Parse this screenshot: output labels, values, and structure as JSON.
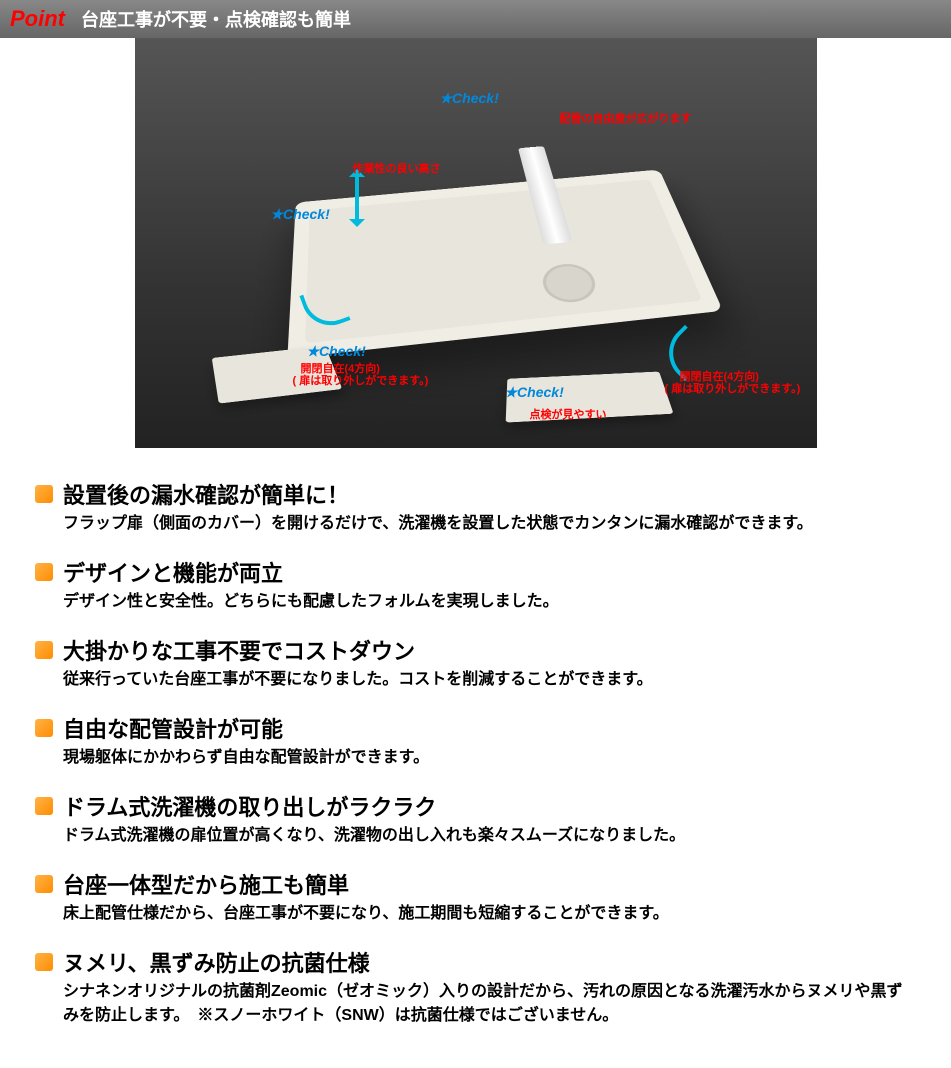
{
  "header": {
    "point_label": "Point",
    "title": "台座工事が不要・点検確認も簡単"
  },
  "diagram": {
    "check_label": "★Check!",
    "checks": [
      {
        "pos": "check-1"
      },
      {
        "pos": "check-2"
      },
      {
        "pos": "check-3"
      },
      {
        "pos": "check-4"
      }
    ],
    "notes": {
      "pipe_freedom": "配管の自由度が広がります",
      "good_height": "作業性の良い高さ",
      "open_close_4way_a": "開閉自在(4方向)",
      "open_close_4way_b": "( 扉は取り外しができます。)",
      "easy_inspection": "点検が見やすい",
      "open_close_right_a": "開閉自在(4方向)",
      "open_close_right_b": "( 扉は取り外しができます。)"
    },
    "colors": {
      "background_gradient_top": "#555555",
      "background_gradient_bottom": "#222222",
      "product_body": "#f0ede5",
      "check_text": "#0088dd",
      "note_text": "#ff0000",
      "arrow_color": "#00bbdd"
    }
  },
  "features": [
    {
      "title": "設置後の漏水確認が簡単に！",
      "desc": "フラップ扉（側面のカバー）を開けるだけで、洗濯機を設置した状態でカンタンに漏水確認ができます。"
    },
    {
      "title": "デザインと機能が両立",
      "desc": "デザイン性と安全性。どちらにも配慮したフォルムを実現しました。"
    },
    {
      "title": "大掛かりな工事不要でコストダウン",
      "desc": "従来行っていた台座工事が不要になりました。コストを削減することができます。"
    },
    {
      "title": "自由な配管設計が可能",
      "desc": "現場躯体にかかわらず自由な配管設計ができます。"
    },
    {
      "title": "ドラム式洗濯機の取り出しがラクラク",
      "desc": "ドラム式洗濯機の扉位置が高くなり、洗濯物の出し入れも楽々スムーズになりました。"
    },
    {
      "title": "台座一体型だから施工も簡単",
      "desc": "床上配管仕様だから、台座工事が不要になり、施工期間も短縮することができます。"
    },
    {
      "title": "ヌメリ、黒ずみ防止の抗菌仕様",
      "desc": "シナネンオリジナルの抗菌剤Zeomic（ゼオミック）入りの設計だから、汚れの原因となる洗濯汚水からヌメリや黒ずみを防止します。　※スノーホワイト（SNW）は抗菌仕様ではございません。"
    }
  ],
  "styling": {
    "header_bg_gradient": [
      "#888888",
      "#666666"
    ],
    "point_color": "#ff0000",
    "header_title_color": "#ffffff",
    "bullet_gradient": [
      "#ffb347",
      "#ff8c00"
    ],
    "feature_title_fontsize": 22,
    "feature_desc_fontsize": 16,
    "text_color": "#000000"
  }
}
